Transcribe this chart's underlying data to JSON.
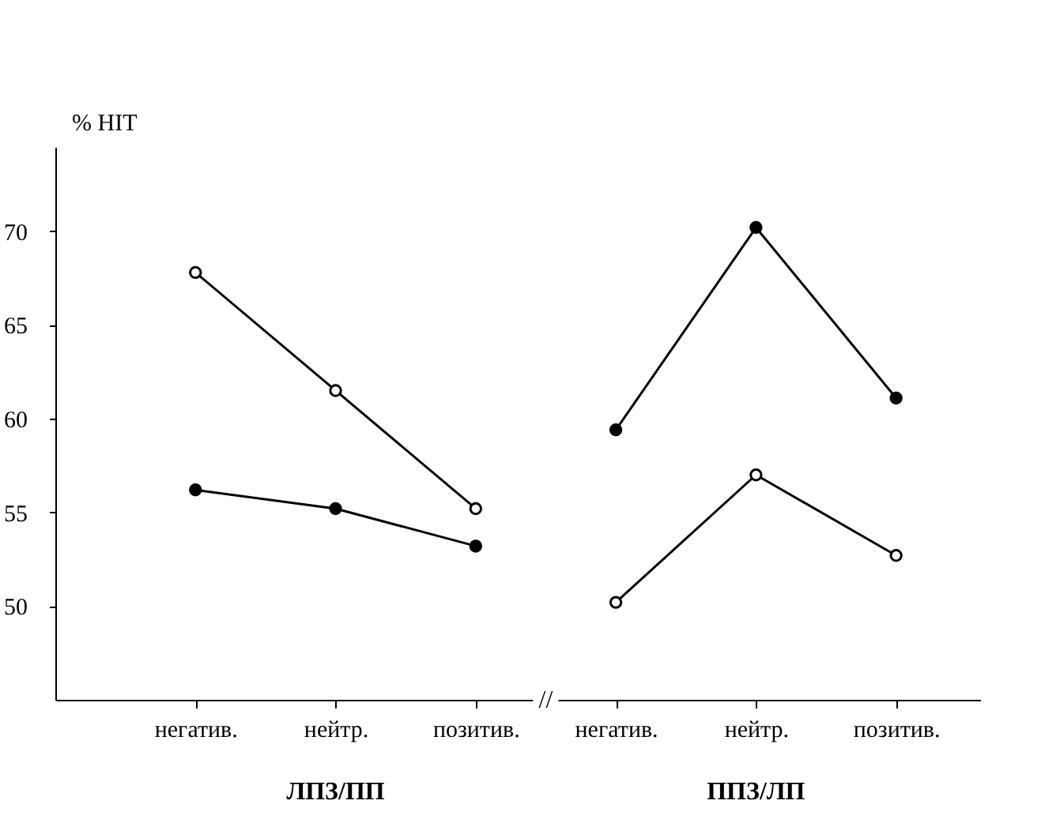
{
  "chart_data": {
    "type": "line",
    "ylabel": "% HIT",
    "categories": [
      "негатив.",
      "нейтр.",
      "позитив.",
      "негатив.",
      "нейтр.",
      "позитив."
    ],
    "series": [
      {
        "color": "#000000",
        "colors": [
          "#ffffff",
          "#ffffff",
          "#ffffff",
          null,
          null,
          null
        ],
        "values": [
          67.8,
          61.5,
          55.2,
          null,
          null,
          null
        ]
      },
      {
        "color": "#000000",
        "values": [
          56.2,
          55.2,
          53.2,
          null,
          null,
          null
        ]
      },
      {
        "color": "#000000",
        "values": [
          null,
          null,
          null,
          59.4,
          70.2,
          61.1
        ]
      },
      {
        "color": "#000000",
        "colors": [
          null,
          null,
          null,
          "#ffffff",
          "#ffffff",
          "#ffffff"
        ],
        "values": [
          null,
          null,
          null,
          50.2,
          57.0,
          52.7
        ]
      }
    ],
    "ylim": [
      45,
      74.5
    ],
    "yticks": [
      50,
      55,
      60,
      65,
      70
    ],
    "marker": "circle",
    "line_style": "solid",
    "grid": false,
    "annotations": [
      "ЛПЗ/ПП",
      "ППЗ/ЛП",
      "//"
    ]
  }
}
